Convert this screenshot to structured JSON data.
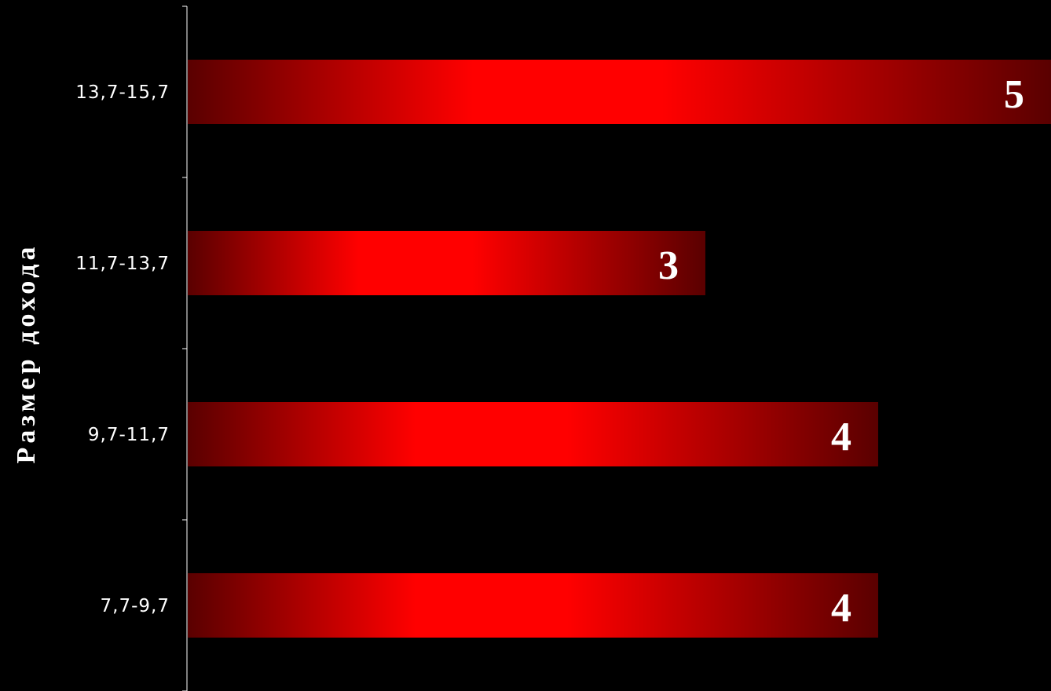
{
  "chart_data": {
    "type": "bar",
    "orientation": "horizontal",
    "categories": [
      "13,7-15,7",
      "11,7-13,7",
      "9,7-11,7",
      "7,7-9,7"
    ],
    "values": [
      5,
      3,
      4,
      4
    ],
    "data_labels": [
      "5",
      "3",
      "4",
      "4"
    ],
    "ylabel": "Размер дохода",
    "xlim": [
      0,
      5
    ],
    "grid": false,
    "legend": "none",
    "colors": {
      "background": "#000000",
      "bar_center": "#ff0000",
      "bar_edge": "#5a0000",
      "axis": "#ffffff",
      "text": "#ffffff"
    }
  }
}
